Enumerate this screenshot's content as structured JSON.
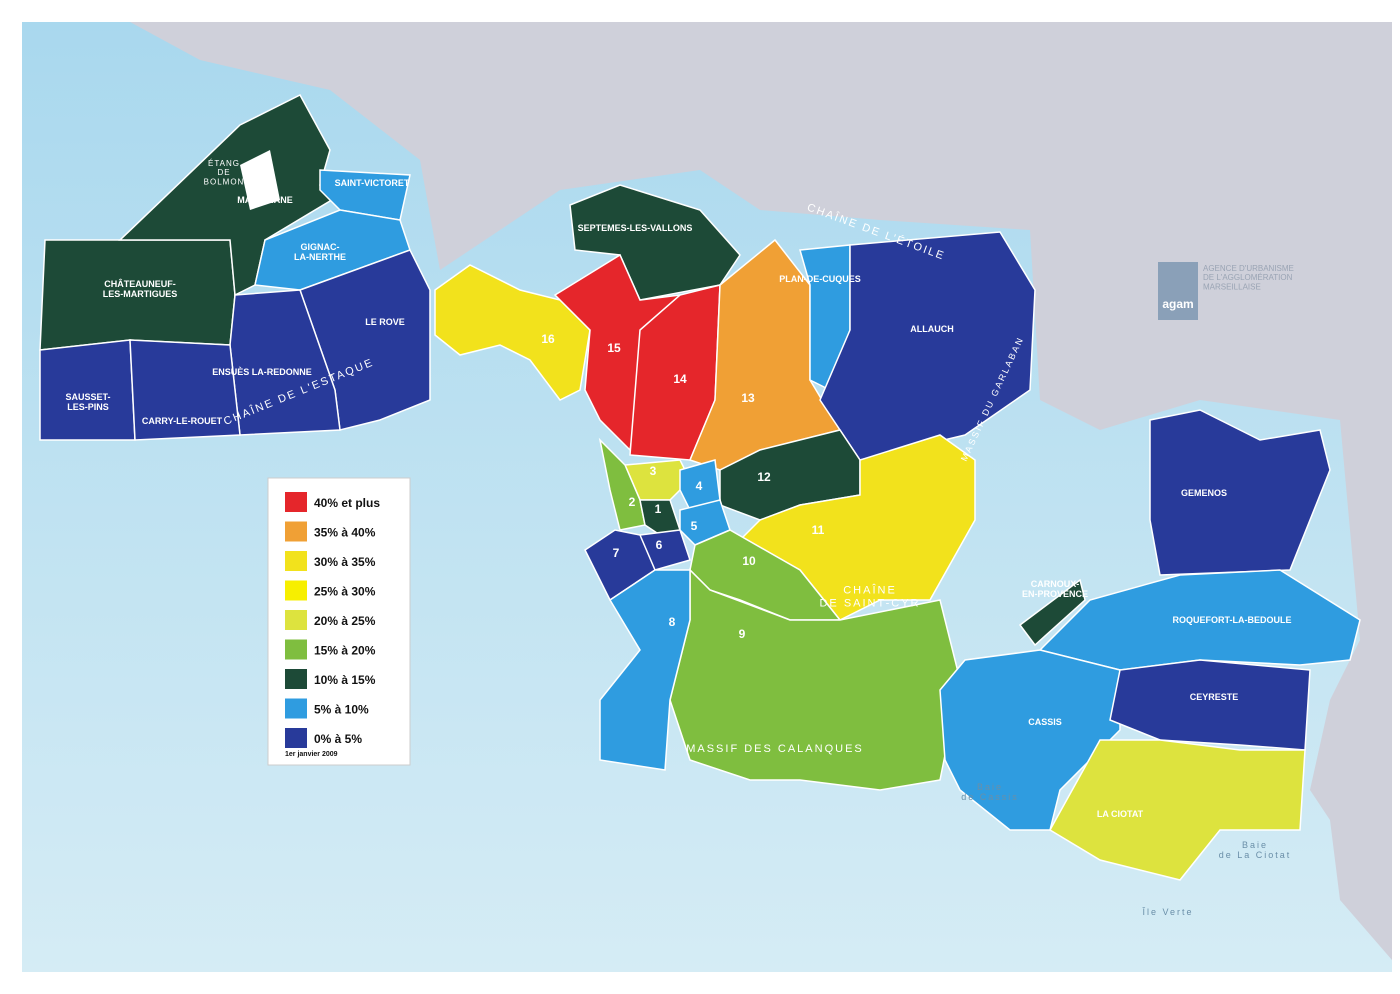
{
  "logo": "agam",
  "agency": "AGENCE D'URBANISME\nDE L'AGGLOMÉRATION\nMARSEILLAISE",
  "legend": {
    "items": [
      {
        "label": "40% et plus",
        "color": "#e5262b"
      },
      {
        "label": "35% à 40%",
        "color": "#f0a035"
      },
      {
        "label": "30% à 35%",
        "color": "#f2e21c"
      },
      {
        "label": "25% à 30%",
        "color": "#f7ef00"
      },
      {
        "label": "20% à 25%",
        "color": "#dde33e"
      },
      {
        "label": "15% à 20%",
        "color": "#7fbe3f"
      },
      {
        "label": "10% à 15%",
        "color": "#1d4a37"
      },
      {
        "label": "5% à 10%",
        "color": "#2f9ce0"
      },
      {
        "label": "0% à 5%",
        "color": "#283a9a"
      }
    ],
    "date": "1er janvier 2009"
  },
  "regions": [
    {
      "label": "CHÂTEAUNEUF-\nLES-MARTIGUES",
      "color": "#1d4a37"
    },
    {
      "label": "MARIGNANE",
      "color": "#1d4a37"
    },
    {
      "label": "SAINT-VICTORET",
      "color": "#2f9ce0"
    },
    {
      "label": "GIGNAC-\nLA-NERTHE",
      "color": "#2f9ce0"
    },
    {
      "label": "LE ROVE",
      "color": "#283a9a"
    },
    {
      "label": "ENSUÈS LA-REDONNE",
      "color": "#283a9a"
    },
    {
      "label": "SAUSSET-\nLES-PINS",
      "color": "#283a9a"
    },
    {
      "label": "CARRY-LE-ROUET",
      "color": "#283a9a"
    },
    {
      "label": "SEPTEMES-LES-VALLONS",
      "color": "#1d4a37"
    },
    {
      "label": "16",
      "color": "#f2e21c"
    },
    {
      "label": "15",
      "color": "#e5262b"
    },
    {
      "label": "14",
      "color": "#e5262b"
    },
    {
      "label": "13",
      "color": "#f0a035"
    },
    {
      "label": "PLAN-DE-CUQUES",
      "color": "#2f9ce0"
    },
    {
      "label": "ALLAUCH",
      "color": "#283a9a"
    },
    {
      "label": "12",
      "color": "#1d4a37"
    },
    {
      "label": "11",
      "color": "#f2e21c"
    },
    {
      "label": "3",
      "color": "#dde33e"
    },
    {
      "label": "2",
      "color": "#7fbe3f"
    },
    {
      "label": "1",
      "color": "#1d4a37"
    },
    {
      "label": "4",
      "color": "#2f9ce0"
    },
    {
      "label": "5",
      "color": "#2f9ce0"
    },
    {
      "label": "6",
      "color": "#283a9a"
    },
    {
      "label": "7",
      "color": "#283a9a"
    },
    {
      "label": "10",
      "color": "#7fbe3f"
    },
    {
      "label": "9",
      "color": "#7fbe3f"
    },
    {
      "label": "8",
      "color": "#2f9ce0"
    },
    {
      "label": "GEMENOS",
      "color": "#283a9a"
    },
    {
      "label": "ROQUEFORT-LA-BEDOULE",
      "color": "#2f9ce0"
    },
    {
      "label": "CARNOUX-\nEN-PROVENCE",
      "color": "#1d4a37"
    },
    {
      "label": "CASSIS",
      "color": "#2f9ce0"
    },
    {
      "label": "CEYRESTE",
      "color": "#283a9a"
    },
    {
      "label": "LA CIOTAT",
      "color": "#dde33e"
    }
  ],
  "places": [
    "ÉTANG\nDE\nBOLMON",
    "CHAÎNE DE L'ESTAQUE",
    "CHAÎNE DE L'ÉTOILE",
    "MASSIF DU GARLABAN",
    "CHAÎNE\nDE SAINT-CYR",
    "MASSIF DES CALANQUES",
    "Baie\nde Cassis",
    "Baie\nde La Ciotat",
    "Île Verte"
  ]
}
